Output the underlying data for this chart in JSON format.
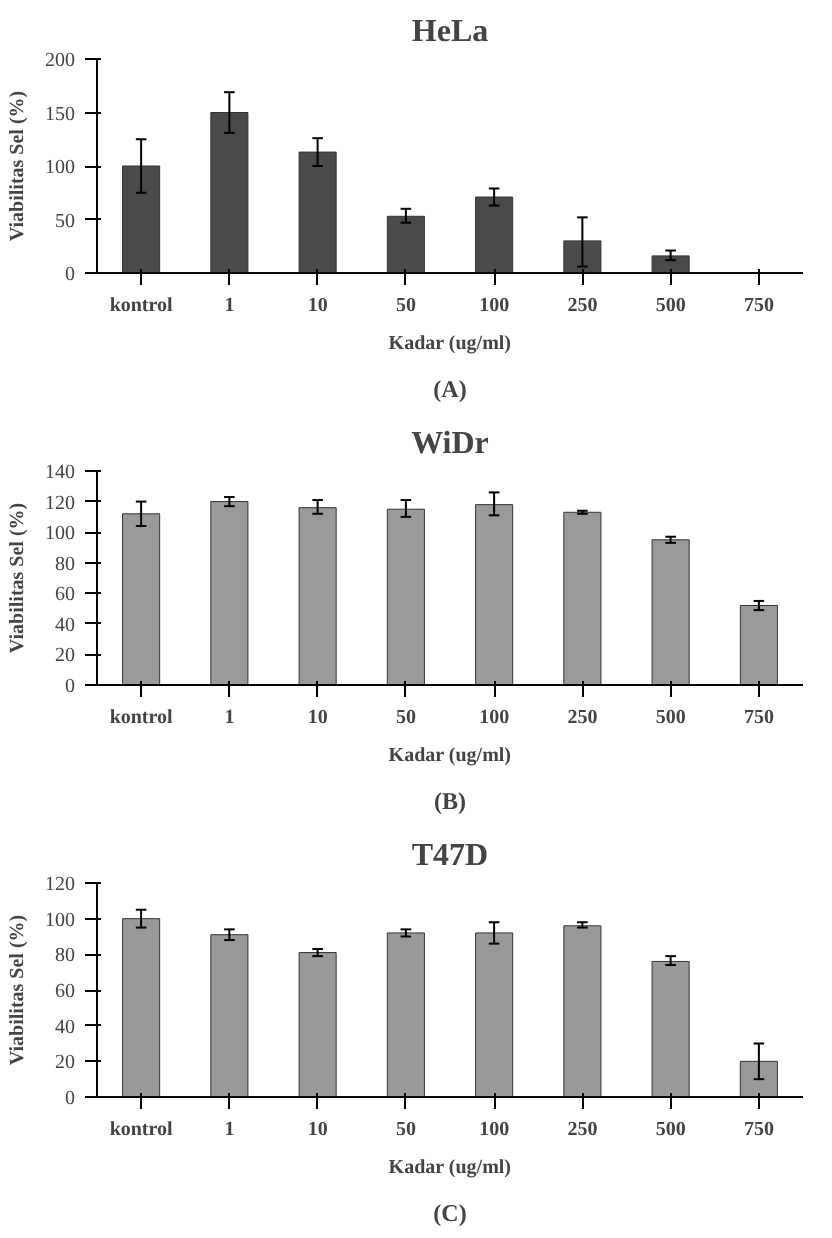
{
  "chart_data": [
    {
      "type": "bar",
      "title": "HeLa",
      "xlabel": "Kadar (ug/ml)",
      "ylabel": "Viabilitas Sel (%)",
      "annotations": [
        "(A)"
      ],
      "categories": [
        "kontrol",
        "1",
        "10",
        "50",
        "100",
        "250",
        "500",
        "750"
      ],
      "values": [
        100,
        150,
        113,
        53,
        71,
        30,
        16,
        null
      ],
      "errors": [
        [
          75,
          125
        ],
        [
          131,
          169
        ],
        [
          100,
          126
        ],
        [
          47,
          60
        ],
        [
          63,
          79
        ],
        [
          6,
          52
        ],
        [
          12,
          21
        ],
        null
      ],
      "color": "#4a4a4a",
      "ylim": [
        0,
        200
      ],
      "yticks": [
        0,
        50,
        100,
        150,
        200
      ],
      "grid": false
    },
    {
      "type": "bar",
      "title": "WiDr",
      "xlabel": "Kadar (ug/ml)",
      "ylabel": "Viabilitas Sel (%)",
      "annotations": [
        "(B)"
      ],
      "categories": [
        "kontrol",
        "1",
        "10",
        "50",
        "100",
        "250",
        "500",
        "750"
      ],
      "values": [
        112,
        120,
        116,
        115,
        118,
        113,
        95,
        52
      ],
      "errors": [
        [
          104,
          120
        ],
        [
          117,
          123
        ],
        [
          112,
          121
        ],
        [
          110,
          121
        ],
        [
          111,
          126
        ],
        [
          112,
          114
        ],
        [
          93,
          97
        ],
        [
          49,
          55
        ]
      ],
      "color": "#9a9a9a",
      "ylim": [
        0,
        140
      ],
      "yticks": [
        0,
        20,
        40,
        60,
        80,
        100,
        120,
        140
      ],
      "grid": false
    },
    {
      "type": "bar",
      "title": "T47D",
      "xlabel": "Kadar (ug/ml)",
      "ylabel": "Viabilitas Sel (%)",
      "annotations": [
        "(C)"
      ],
      "categories": [
        "kontrol",
        "1",
        "10",
        "50",
        "100",
        "250",
        "500",
        "750"
      ],
      "values": [
        100,
        91,
        81,
        92,
        92,
        96,
        76,
        20
      ],
      "errors": [
        [
          95,
          105
        ],
        [
          88,
          94
        ],
        [
          79,
          83
        ],
        [
          90,
          94
        ],
        [
          86,
          98
        ],
        [
          95,
          98
        ],
        [
          74,
          79
        ],
        [
          10,
          30
        ]
      ],
      "color": "#999999",
      "ylim": [
        0,
        120
      ],
      "yticks": [
        0,
        20,
        40,
        60,
        80,
        100,
        120
      ],
      "grid": false
    }
  ]
}
